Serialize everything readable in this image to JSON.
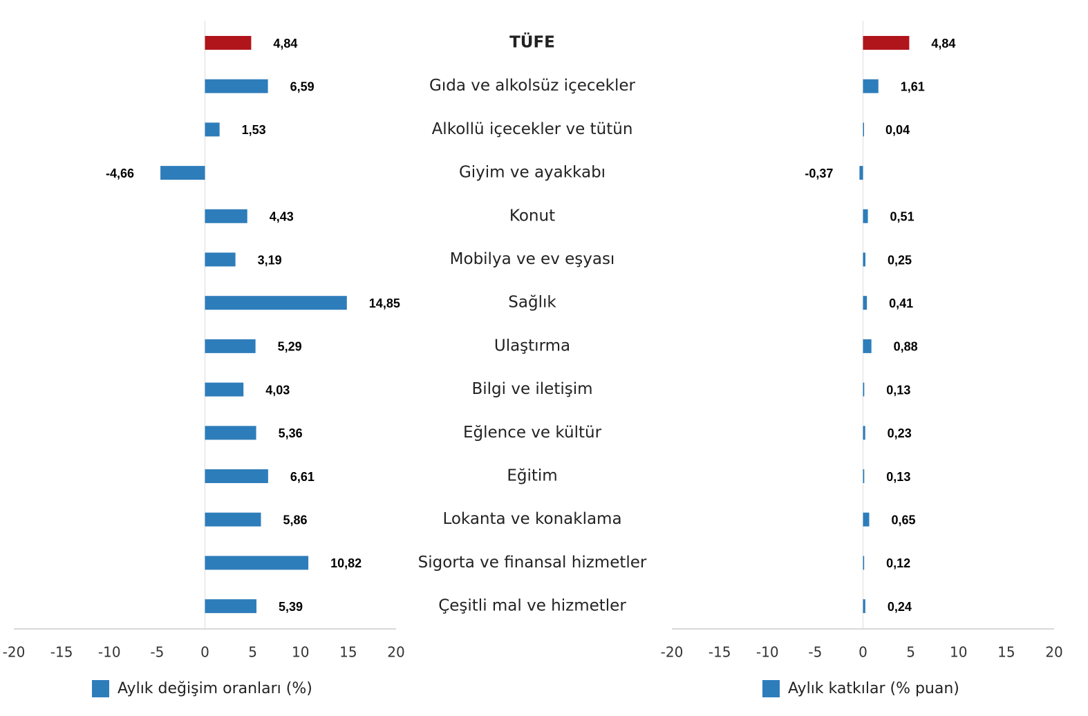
{
  "chart_data": {
    "type": "bar",
    "orientation": "horizontal",
    "categories": [
      "TÜFE",
      "Gıda ve alkolsüz içecekler",
      "Alkollü içecekler ve tütün",
      "Giyim ve ayakkabı",
      "Konut",
      "Mobilya ve ev eşyası",
      "Sağlık",
      "Ulaştırma",
      "Bilgi ve iletişim",
      "Eğlence ve kültür",
      "Eğitim",
      "Lokanta ve konaklama",
      "Sigorta ve finansal hizmetler",
      "Çeşitli mal ve hizmetler"
    ],
    "series": [
      {
        "name": "Aylık değişim oranları (%)",
        "color": "#2e7dbb",
        "colors": [
          "#b0151b",
          "#2e7dbb",
          "#2e7dbb",
          "#2e7dbb",
          "#2e7dbb",
          "#2e7dbb",
          "#2e7dbb",
          "#2e7dbb",
          "#2e7dbb",
          "#2e7dbb",
          "#2e7dbb",
          "#2e7dbb",
          "#2e7dbb",
          "#2e7dbb"
        ],
        "values": [
          4.84,
          6.59,
          1.53,
          -4.66,
          4.43,
          3.19,
          14.85,
          5.29,
          4.03,
          5.36,
          6.61,
          5.86,
          10.82,
          5.39
        ],
        "value_labels": [
          "4,84",
          "6,59",
          "1,53",
          "-4,66",
          "4,43",
          "3,19",
          "14,85",
          "5,29",
          "4,03",
          "5,36",
          "6,61",
          "5,86",
          "10,82",
          "5,39"
        ]
      },
      {
        "name": "Aylık katkılar (% puan)",
        "color": "#2e7dbb",
        "colors": [
          "#b0151b",
          "#2e7dbb",
          "#2e7dbb",
          "#2e7dbb",
          "#2e7dbb",
          "#2e7dbb",
          "#2e7dbb",
          "#2e7dbb",
          "#2e7dbb",
          "#2e7dbb",
          "#2e7dbb",
          "#2e7dbb",
          "#2e7dbb",
          "#2e7dbb"
        ],
        "values": [
          4.84,
          1.61,
          0.04,
          -0.37,
          0.51,
          0.25,
          0.41,
          0.88,
          0.13,
          0.23,
          0.13,
          0.65,
          0.12,
          0.24
        ],
        "value_labels": [
          "4,84",
          "1,61",
          "0,04",
          "-0,37",
          "0,51",
          "0,25",
          "0,41",
          "0,88",
          "0,13",
          "0,23",
          "0,13",
          "0,65",
          "0,12",
          "0,24"
        ]
      }
    ],
    "xlim": [
      -20,
      20
    ],
    "xticks": [
      -20,
      -15,
      -10,
      -5,
      0,
      5,
      10,
      15,
      20
    ],
    "grid": false
  }
}
